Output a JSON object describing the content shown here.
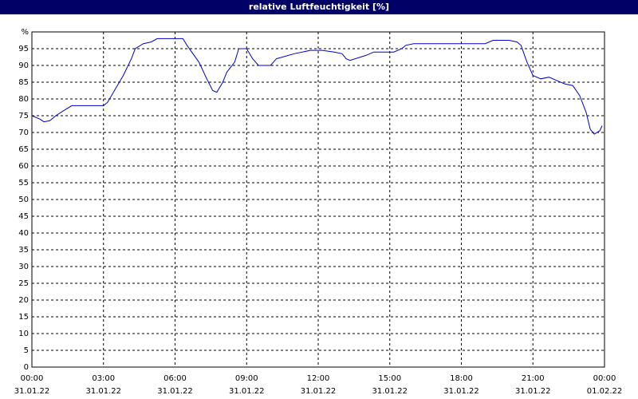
{
  "chart_data": {
    "type": "line",
    "title": "relative Luftfeuchtigkeit [%]",
    "x": [
      0,
      0.33,
      0.5,
      0.75,
      1,
      1.33,
      1.67,
      2,
      3,
      3.17,
      3.5,
      3.83,
      4.17,
      4.33,
      4.67,
      5,
      5.25,
      6,
      6.33,
      6.5,
      7,
      7.33,
      7.58,
      7.75,
      8,
      8.17,
      8.5,
      8.67,
      9,
      9.25,
      9.5,
      10,
      10.25,
      11,
      11.67,
      12.17,
      12.67,
      13,
      13.17,
      13.33,
      14,
      14.33,
      15.17,
      15.5,
      15.67,
      16,
      19,
      19.33,
      20,
      20.33,
      20.5,
      20.75,
      21,
      21.33,
      21.67,
      22,
      22.33,
      22.67,
      22.96,
      23.23,
      23.4,
      23.57,
      23.8,
      23.9
    ],
    "series": [
      {
        "name": "relative Luftfeuchtigkeit",
        "color": "#0000cc",
        "values": [
          75,
          74,
          73.2,
          73.5,
          75,
          76.5,
          78,
          78,
          78,
          79,
          83,
          87,
          92,
          95,
          96.5,
          97,
          98,
          98,
          98,
          96,
          91,
          86,
          82.5,
          82,
          85,
          88,
          91,
          95,
          95,
          92,
          90,
          90,
          92,
          93.5,
          94.5,
          94.5,
          94,
          93.5,
          92,
          91.5,
          93,
          94,
          94,
          95,
          96,
          96.5,
          96.5,
          97.5,
          97.5,
          97,
          96,
          91,
          87,
          86,
          86.5,
          85.5,
          84.5,
          84,
          81,
          76,
          71,
          69.5,
          70.5,
          72
        ]
      }
    ],
    "xlim": [
      0,
      24
    ],
    "ylim": [
      0,
      100
    ],
    "xticks": [
      {
        "value": 0,
        "label": "00:00",
        "date": "31.01.22"
      },
      {
        "value": 3,
        "label": "03:00",
        "date": "31.01.22"
      },
      {
        "value": 6,
        "label": "06:00",
        "date": "31.01.22"
      },
      {
        "value": 9,
        "label": "09:00",
        "date": "31.01.22"
      },
      {
        "value": 12,
        "label": "12:00",
        "date": "31.01.22"
      },
      {
        "value": 15,
        "label": "15:00",
        "date": "31.01.22"
      },
      {
        "value": 18,
        "label": "18:00",
        "date": "31.01.22"
      },
      {
        "value": 21,
        "label": "21:00",
        "date": "31.01.22"
      },
      {
        "value": 24,
        "label": "00:00",
        "date": "01.02.22"
      }
    ],
    "yticks": [
      0,
      5,
      10,
      15,
      20,
      25,
      30,
      35,
      40,
      45,
      50,
      55,
      60,
      65,
      70,
      75,
      80,
      85,
      90,
      95,
      {
        "value": 100,
        "label": "%"
      }
    ],
    "grid": true
  }
}
